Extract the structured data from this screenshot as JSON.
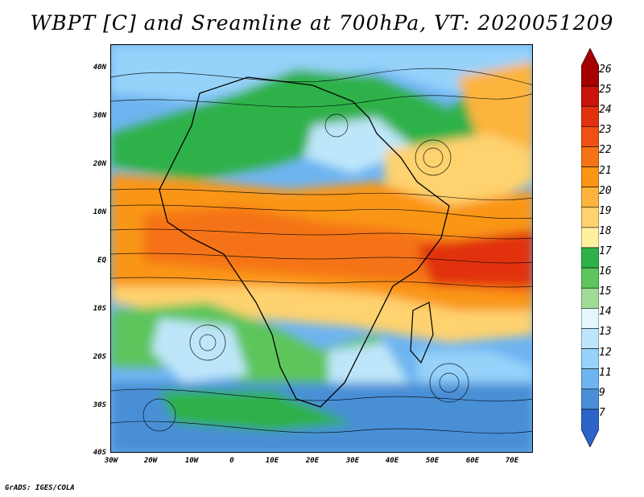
{
  "title": "WBPT [C] and Sreamline at 700hPa, VT: 2020051209",
  "footer": "GrADS: IGES/COLA",
  "axes": {
    "lat_labels": [
      "40N",
      "30N",
      "20N",
      "10N",
      "EQ",
      "10S",
      "20S",
      "30S",
      "40S"
    ],
    "lon_labels": [
      "30W",
      "20W",
      "10W",
      "0",
      "10E",
      "20E",
      "30E",
      "40E",
      "50E",
      "60E",
      "70E"
    ]
  },
  "colorbar": {
    "labels": [
      "26",
      "25",
      "24",
      "23",
      "22",
      "21",
      "20",
      "19",
      "18",
      "17",
      "16",
      "15",
      "14",
      "13",
      "12",
      "11",
      "9",
      "7"
    ],
    "colors": [
      "#a50000",
      "#c8140a",
      "#e1320f",
      "#f05014",
      "#f57314",
      "#fa9614",
      "#fcb43c",
      "#fed26e",
      "#fff0a0",
      "#2fb14a",
      "#5dc55c",
      "#a0dc96",
      "#e6f6ff",
      "#bee6fa",
      "#96d2fa",
      "#6eb4f0",
      "#4a8fd6",
      "#2d64c8"
    ]
  },
  "fields": {
    "legend_variable": "WBPT [C]",
    "overlay": "Sreamline"
  }
}
